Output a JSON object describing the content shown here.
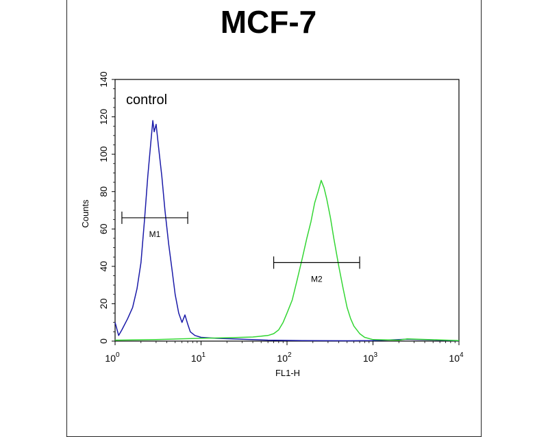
{
  "chart_data": {
    "type": "line",
    "title": "MCF-7",
    "xlabel": "FL1-H",
    "ylabel": "Counts",
    "x_scale": "log",
    "xlim": [
      1,
      10000
    ],
    "ylim": [
      0,
      140
    ],
    "y_ticks": [
      0,
      20,
      40,
      60,
      80,
      100,
      120,
      140
    ],
    "x_ticks": [
      {
        "base": "10",
        "exp": "0",
        "value": 1
      },
      {
        "base": "10",
        "exp": "1",
        "value": 10
      },
      {
        "base": "10",
        "exp": "2",
        "value": 100
      },
      {
        "base": "10",
        "exp": "3",
        "value": 1000
      },
      {
        "base": "10",
        "exp": "4",
        "value": 10000
      }
    ],
    "annotations": [
      {
        "text": "control"
      }
    ],
    "series": [
      {
        "color": "#1a1aa8",
        "points": [
          [
            1.0,
            10
          ],
          [
            1.1,
            3
          ],
          [
            1.2,
            6
          ],
          [
            1.4,
            12
          ],
          [
            1.6,
            18
          ],
          [
            1.8,
            28
          ],
          [
            2.0,
            42
          ],
          [
            2.2,
            65
          ],
          [
            2.4,
            88
          ],
          [
            2.6,
            106
          ],
          [
            2.75,
            118
          ],
          [
            2.85,
            112
          ],
          [
            3.0,
            116
          ],
          [
            3.2,
            104
          ],
          [
            3.5,
            88
          ],
          [
            3.8,
            70
          ],
          [
            4.2,
            52
          ],
          [
            4.6,
            38
          ],
          [
            5.0,
            25
          ],
          [
            5.5,
            15
          ],
          [
            6.0,
            10
          ],
          [
            6.5,
            14
          ],
          [
            7.0,
            9
          ],
          [
            7.5,
            5
          ],
          [
            8.5,
            3
          ],
          [
            10,
            2
          ],
          [
            15,
            1.5
          ],
          [
            30,
            1
          ],
          [
            60,
            0.5
          ],
          [
            150,
            0.3
          ],
          [
            500,
            0.2
          ],
          [
            1000,
            0.3
          ],
          [
            2500,
            1
          ],
          [
            10000,
            0.2
          ]
        ]
      },
      {
        "color": "#33d633",
        "points": [
          [
            1.0,
            0.5
          ],
          [
            3,
            0.8
          ],
          [
            10,
            1.5
          ],
          [
            20,
            1.8
          ],
          [
            40,
            2.2
          ],
          [
            60,
            3
          ],
          [
            70,
            4
          ],
          [
            80,
            6
          ],
          [
            90,
            10
          ],
          [
            100,
            15
          ],
          [
            115,
            22
          ],
          [
            130,
            32
          ],
          [
            150,
            44
          ],
          [
            170,
            55
          ],
          [
            190,
            64
          ],
          [
            210,
            74
          ],
          [
            230,
            80
          ],
          [
            250,
            86
          ],
          [
            270,
            82
          ],
          [
            290,
            76
          ],
          [
            320,
            66
          ],
          [
            350,
            55
          ],
          [
            400,
            40
          ],
          [
            450,
            28
          ],
          [
            500,
            18
          ],
          [
            550,
            12
          ],
          [
            600,
            8
          ],
          [
            700,
            4
          ],
          [
            800,
            2
          ],
          [
            1000,
            0.8
          ],
          [
            2000,
            0.5
          ],
          [
            2500,
            1.2
          ],
          [
            10000,
            0.3
          ]
        ]
      }
    ],
    "markers": [
      {
        "label": "M1",
        "x_start": 1.2,
        "x_end": 7.0,
        "y": 66
      },
      {
        "label": "M2",
        "x_start": 70,
        "x_end": 700,
        "y": 42
      }
    ]
  }
}
